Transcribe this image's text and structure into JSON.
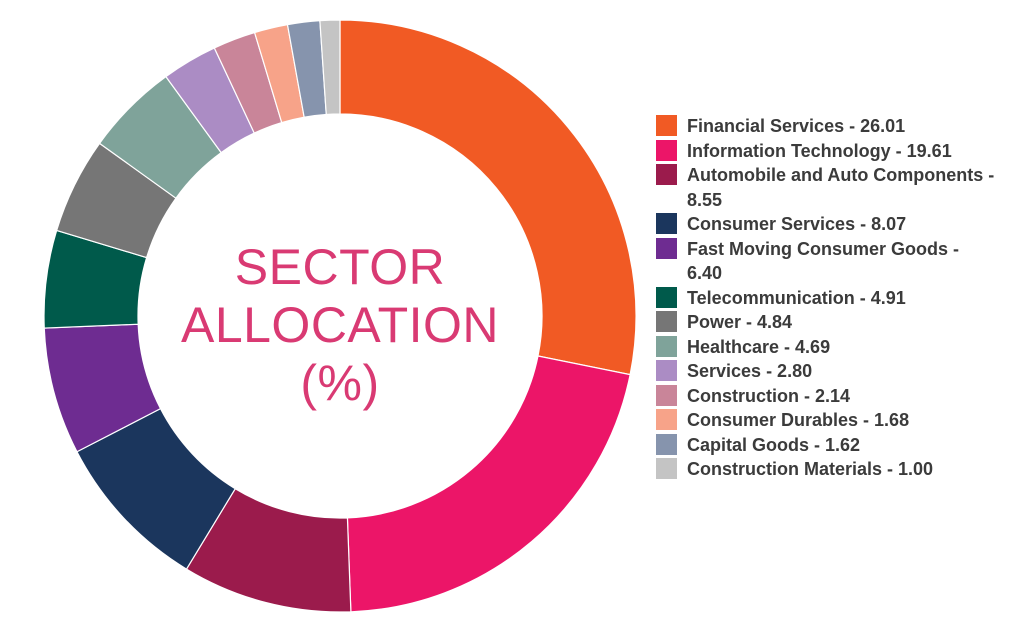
{
  "chart_data": {
    "type": "pie",
    "title_lines": [
      "SECTOR",
      "ALLOCATION",
      "(%)"
    ],
    "legend_position": "right",
    "slices": [
      {
        "label": "Financial Services",
        "value": 26.01,
        "color": "#f15a24",
        "legend_lines": [
          "Financial Services - 26.01"
        ]
      },
      {
        "label": "Information Technology",
        "value": 19.61,
        "color": "#ec1568",
        "legend_lines": [
          "Information Technology - 19.61"
        ]
      },
      {
        "label": "Automobile and Auto Components",
        "value": 8.55,
        "color": "#9b1b4c",
        "legend_lines": [
          "Automobile and Auto Components -",
          "8.55"
        ]
      },
      {
        "label": "Consumer Services",
        "value": 8.07,
        "color": "#1b365d",
        "legend_lines": [
          "Consumer Services - 8.07"
        ]
      },
      {
        "label": "Fast Moving Consumer Goods",
        "value": 6.4,
        "color": "#6e2c91",
        "legend_lines": [
          "Fast Moving Consumer Goods -",
          "6.40"
        ]
      },
      {
        "label": "Telecommunication",
        "value": 4.91,
        "color": "#005a4b",
        "legend_lines": [
          "Telecommunication - 4.91"
        ]
      },
      {
        "label": "Power",
        "value": 4.84,
        "color": "#767676",
        "legend_lines": [
          "Power - 4.84"
        ]
      },
      {
        "label": "Healthcare",
        "value": 4.69,
        "color": "#7fa39a",
        "legend_lines": [
          "Healthcare - 4.69"
        ]
      },
      {
        "label": "Services",
        "value": 2.8,
        "color": "#ab8cc4",
        "legend_lines": [
          "Services - 2.80"
        ]
      },
      {
        "label": "Construction",
        "value": 2.14,
        "color": "#c98599",
        "legend_lines": [
          "Construction - 2.14"
        ]
      },
      {
        "label": "Consumer Durables",
        "value": 1.68,
        "color": "#f7a389",
        "legend_lines": [
          "Consumer Durables - 1.68"
        ]
      },
      {
        "label": "Capital Goods",
        "value": 1.62,
        "color": "#8694ad",
        "legend_lines": [
          "Capital Goods - 1.62"
        ]
      },
      {
        "label": "Construction Materials",
        "value": 1.0,
        "color": "#c4c4c4",
        "legend_lines": [
          "Construction Materials - 1.00"
        ]
      }
    ]
  }
}
